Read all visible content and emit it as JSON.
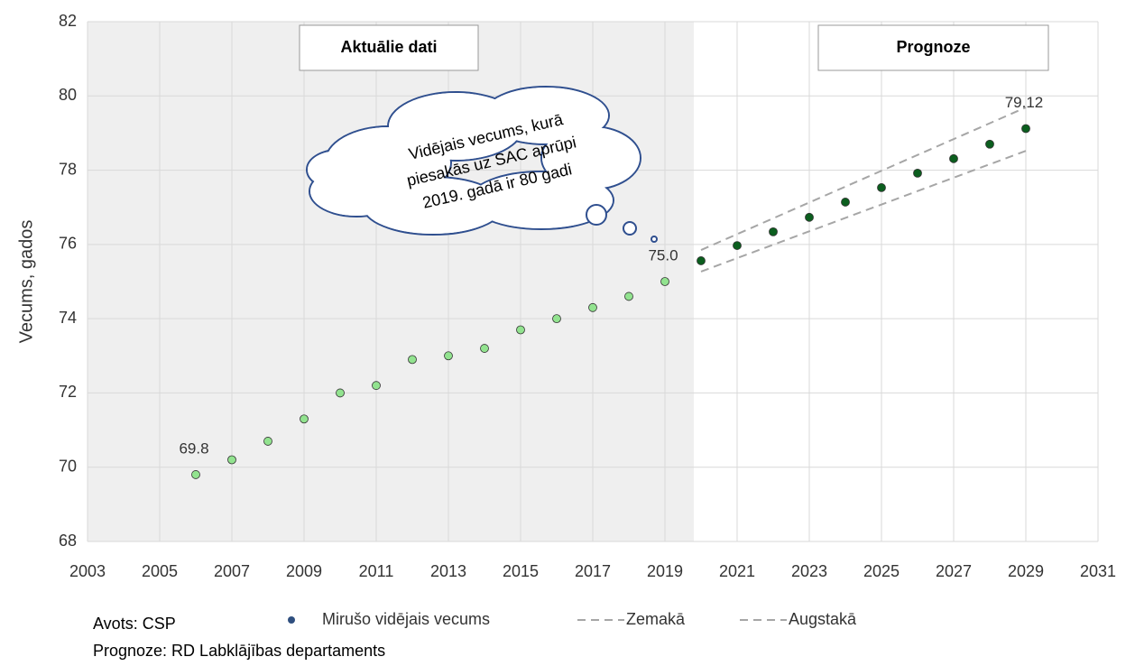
{
  "chart_data": {
    "type": "scatter",
    "ylabel": "Vecums, gados",
    "xlim": [
      2003,
      2031
    ],
    "ylim": [
      68,
      82
    ],
    "xticks": [
      2003,
      2005,
      2007,
      2009,
      2011,
      2013,
      2015,
      2017,
      2019,
      2021,
      2023,
      2025,
      2027,
      2029,
      2031
    ],
    "yticks": [
      68,
      70,
      72,
      74,
      76,
      78,
      80,
      82
    ],
    "grid": true,
    "shaded_until": 2019.8,
    "shade_color": "#efefef",
    "panel_labels": [
      "Aktuālie dati",
      "Prognoze"
    ],
    "annotation": [
      "Vidējais vecums, kurā",
      "piesakās uz SAC aprūpi",
      "2019. gadā ir 80 gadi"
    ],
    "series": [
      {
        "name": "Mirušo vidējais vecums",
        "kind": "marker",
        "color": "#2f4f7f",
        "x": [
          2006,
          2007,
          2008,
          2009,
          2010,
          2011,
          2012,
          2013,
          2014,
          2015,
          2016,
          2017,
          2018,
          2019,
          2020,
          2021,
          2022,
          2023,
          2024,
          2025,
          2026,
          2027,
          2028,
          2029
        ],
        "values": [
          69.8,
          70.2,
          70.7,
          71.3,
          72.0,
          72.2,
          72.9,
          73.0,
          73.2,
          73.7,
          74.0,
          74.3,
          74.6,
          75.0,
          75.56,
          75.97,
          76.34,
          76.73,
          77.14,
          77.53,
          77.92,
          78.31,
          78.7,
          79.12
        ],
        "marker_colors": [
          "#92e38f",
          "#92e38f",
          "#92e38f",
          "#92e38f",
          "#92e38f",
          "#92e38f",
          "#92e38f",
          "#92e38f",
          "#92e38f",
          "#92e38f",
          "#92e38f",
          "#92e38f",
          "#92e38f",
          "#92e38f",
          "#0b5e1e",
          "#0b5e1e",
          "#0b5e1e",
          "#0b5e1e",
          "#0b5e1e",
          "#0b5e1e",
          "#0b5e1e",
          "#0b5e1e",
          "#0b5e1e",
          "#0b5e1e"
        ],
        "value_labels": [
          "69.8",
          null,
          null,
          null,
          null,
          null,
          null,
          null,
          null,
          null,
          null,
          null,
          null,
          "75.0",
          null,
          null,
          null,
          null,
          null,
          null,
          null,
          null,
          null,
          "79.12"
        ]
      },
      {
        "name": "Zemakā",
        "kind": "dashed",
        "color": "#a6a6a6",
        "x": [
          2020,
          2029
        ],
        "values": [
          75.27,
          78.52
        ]
      },
      {
        "name": "Augstakā",
        "kind": "dashed",
        "color": "#a6a6a6",
        "x": [
          2020,
          2029
        ],
        "values": [
          75.85,
          79.69
        ]
      }
    ],
    "notes": [
      "Avots: CSP",
      "Prognoze: RD Labklājības departaments"
    ]
  }
}
